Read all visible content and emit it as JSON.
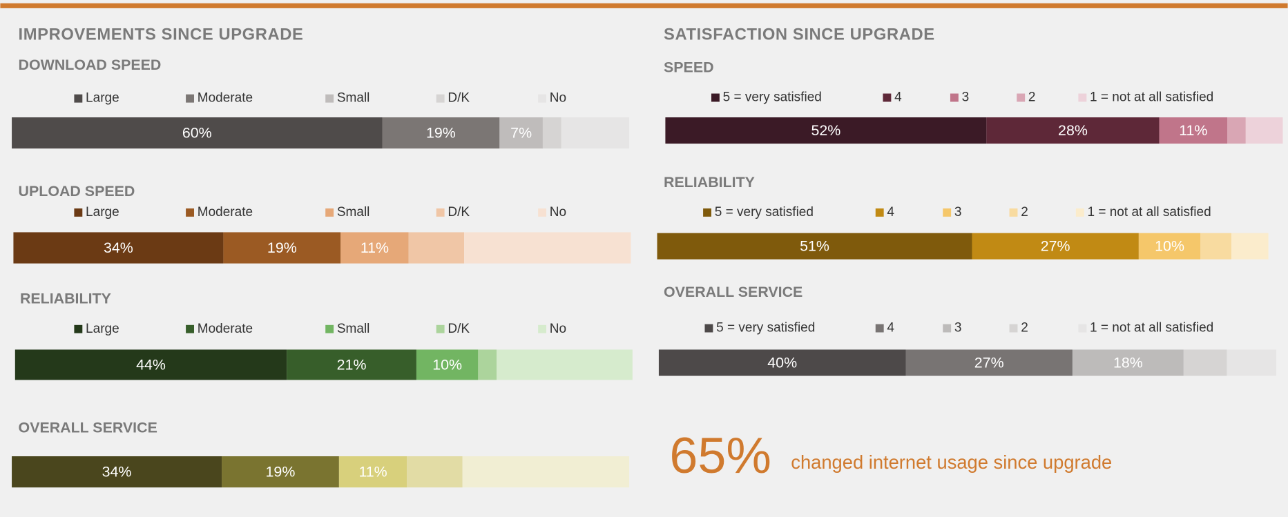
{
  "sections": [
    "IMPROVEMENTS SINCE UPGRADE",
    "SATISFACTION SINCE UPGRADE"
  ],
  "stat": {
    "value": "65%",
    "text": "changed internet usage since upgrade"
  },
  "chart_data": [
    {
      "type": "stacked_bar",
      "title": "DOWNLOAD SPEED",
      "xlim": [
        0,
        100
      ],
      "series": [
        {
          "name": "Large",
          "color": "#4f4b4a",
          "values": [
            60
          ],
          "value_labels": [
            "60%"
          ]
        },
        {
          "name": "Moderate",
          "color": "#7b7674",
          "values": [
            19
          ],
          "value_labels": [
            "19%"
          ]
        },
        {
          "name": "Small",
          "color": "#bfbcbb",
          "values": [
            7
          ],
          "value_labels": [
            "7%"
          ]
        },
        {
          "name": "D/K",
          "color": "#d6d4d3",
          "values": [
            3
          ]
        },
        {
          "name": "No",
          "color": "#e6e5e5",
          "values": [
            11
          ]
        }
      ]
    },
    {
      "type": "stacked_bar",
      "title": "UPLOAD SPEED",
      "xlim": [
        0,
        100
      ],
      "series": [
        {
          "name": "Large",
          "color": "#6b3a14",
          "values": [
            34
          ],
          "value_labels": [
            "34%"
          ]
        },
        {
          "name": "Moderate",
          "color": "#9b5a23",
          "values": [
            19
          ],
          "value_labels": [
            "19%"
          ]
        },
        {
          "name": "Small",
          "color": "#e6a878",
          "values": [
            11
          ],
          "value_labels": [
            "11%"
          ]
        },
        {
          "name": "D/K",
          "color": "#f0c6a6",
          "values": [
            9
          ]
        },
        {
          "name": "No",
          "color": "#f7e1d2",
          "values": [
            27
          ]
        }
      ]
    },
    {
      "type": "stacked_bar",
      "title": "RELIABILITY",
      "xlim": [
        0,
        100
      ],
      "series": [
        {
          "name": "Large",
          "color": "#24391a",
          "values": [
            44
          ],
          "value_labels": [
            "44%"
          ]
        },
        {
          "name": "Moderate",
          "color": "#375e2a",
          "values": [
            21
          ],
          "value_labels": [
            "21%"
          ]
        },
        {
          "name": "Small",
          "color": "#72b562",
          "values": [
            10
          ],
          "value_labels": [
            "10%"
          ]
        },
        {
          "name": "D/K",
          "color": "#acd49c",
          "values": [
            3
          ]
        },
        {
          "name": "No",
          "color": "#d6ebcd",
          "values": [
            22
          ]
        }
      ]
    },
    {
      "type": "stacked_bar",
      "title": "OVERALL SERVICE",
      "xlim": [
        0,
        100
      ],
      "series": [
        {
          "color": "#4a461d",
          "values": [
            34
          ],
          "value_labels": [
            "34%"
          ]
        },
        {
          "color": "#7a7430",
          "values": [
            19
          ],
          "value_labels": [
            "19%"
          ]
        },
        {
          "color": "#d8d07c",
          "values": [
            11
          ],
          "value_labels": [
            "11%"
          ]
        },
        {
          "color": "#e2dca5",
          "values": [
            9
          ]
        },
        {
          "color": "#f1eed3",
          "values": [
            27
          ]
        }
      ]
    },
    {
      "type": "stacked_bar",
      "title": "SPEED",
      "xlim": [
        0,
        100
      ],
      "series": [
        {
          "name": "5 = very satisfied",
          "color": "#3b1a26",
          "values": [
            52
          ],
          "value_labels": [
            "52%"
          ]
        },
        {
          "name": "4",
          "color": "#5e2838",
          "values": [
            28
          ],
          "value_labels": [
            "28%"
          ]
        },
        {
          "name": "3",
          "color": "#c0758a",
          "values": [
            11
          ],
          "value_labels": [
            "11%"
          ]
        },
        {
          "name": "2",
          "color": "#d9a6b4",
          "values": [
            3
          ]
        },
        {
          "name": "1 = not at all satisfied",
          "color": "#edd2da",
          "values": [
            6
          ]
        }
      ]
    },
    {
      "type": "stacked_bar",
      "title": "RELIABILITY",
      "xlim": [
        0,
        100
      ],
      "series": [
        {
          "name": "5 = very satisfied",
          "color": "#7f5a0c",
          "values": [
            51
          ],
          "value_labels": [
            "51%"
          ]
        },
        {
          "name": "4",
          "color": "#c18a14",
          "values": [
            27
          ],
          "value_labels": [
            "27%"
          ]
        },
        {
          "name": "3",
          "color": "#f5c76a",
          "values": [
            10
          ],
          "value_labels": [
            "10%"
          ]
        },
        {
          "name": "2",
          "color": "#f8dba0",
          "values": [
            5
          ]
        },
        {
          "name": "1 = not at all satisfied",
          "color": "#fbeccc",
          "values": [
            6
          ]
        }
      ]
    },
    {
      "type": "stacked_bar",
      "title": "OVERALL SERVICE",
      "xlim": [
        0,
        100
      ],
      "series": [
        {
          "name": "5 = very satisfied",
          "color": "#4d4949",
          "values": [
            40
          ],
          "value_labels": [
            "40%"
          ]
        },
        {
          "name": "4",
          "color": "#787473",
          "values": [
            27
          ],
          "value_labels": [
            "27%"
          ]
        },
        {
          "name": "3",
          "color": "#bdbbba",
          "values": [
            18
          ],
          "value_labels": [
            "18%"
          ]
        },
        {
          "name": "2",
          "color": "#d6d4d3",
          "values": [
            7
          ]
        },
        {
          "name": "1 = not at all satisfied",
          "color": "#e6e5e5",
          "values": [
            8
          ]
        }
      ]
    }
  ]
}
